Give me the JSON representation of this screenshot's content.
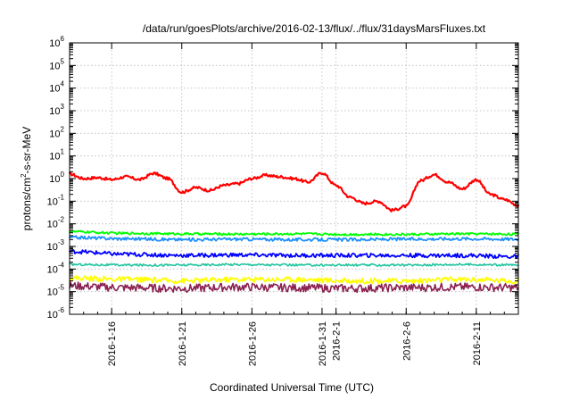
{
  "chart_data": {
    "type": "line",
    "title": "/data/run/goesPlots/archive/2016-02-13/flux/../flux/31daysMarsFluxes.txt",
    "xlabel": "Coordinated Universal Time (UTC)",
    "ylabel": "protons/cm²-s-sr-MeV",
    "ylabel_parts": {
      "base": "protons/cm",
      "sup": "2",
      "rest": "-s-sr-MeV"
    },
    "yscale": "log",
    "ylim": [
      1e-06,
      1000000.0
    ],
    "xlim": [
      "2016-01-13",
      "2016-02-14"
    ],
    "y_ticks": [
      {
        "base": "10",
        "exp": "-6",
        "value": 1e-06
      },
      {
        "base": "10",
        "exp": "-5",
        "value": 1e-05
      },
      {
        "base": "10",
        "exp": "-4",
        "value": 0.0001
      },
      {
        "base": "10",
        "exp": "-3",
        "value": 0.001
      },
      {
        "base": "10",
        "exp": "-2",
        "value": 0.01
      },
      {
        "base": "10",
        "exp": "-1",
        "value": 0.1
      },
      {
        "base": "10",
        "exp": "0",
        "value": 1
      },
      {
        "base": "10",
        "exp": "1",
        "value": 10.0
      },
      {
        "base": "10",
        "exp": "2",
        "value": 100.0
      },
      {
        "base": "10",
        "exp": "3",
        "value": 1000.0
      },
      {
        "base": "10",
        "exp": "4",
        "value": 10000.0
      },
      {
        "base": "10",
        "exp": "5",
        "value": 100000.0
      },
      {
        "base": "10",
        "exp": "6",
        "value": 1000000.0
      }
    ],
    "x_ticks": [
      {
        "date": "2016-01-16",
        "label": "2016-1-16"
      },
      {
        "date": "2016-01-21",
        "label": "2016-1-21"
      },
      {
        "date": "2016-01-26",
        "label": "2016-1-26"
      },
      {
        "date": "2016-01-31",
        "label": "2016-1-31"
      },
      {
        "date": "2016-02-01",
        "label": "2016-2-1"
      },
      {
        "date": "2016-02-06",
        "label": "2016-2-6"
      },
      {
        "date": "2016-02-11",
        "label": "2016-2-11"
      }
    ],
    "grid": true,
    "legend": "none",
    "series": [
      {
        "color": "#ff0000",
        "x": [
          "2016-01-13",
          "2016-01-14",
          "2016-01-15",
          "2016-01-16",
          "2016-01-17",
          "2016-01-18",
          "2016-01-19",
          "2016-01-20",
          "2016-01-21",
          "2016-01-22",
          "2016-01-23",
          "2016-01-24",
          "2016-01-25",
          "2016-01-26",
          "2016-01-27",
          "2016-01-28",
          "2016-01-29",
          "2016-01-30",
          "2016-01-31",
          "2016-02-01",
          "2016-02-02",
          "2016-02-03",
          "2016-02-04",
          "2016-02-05",
          "2016-02-06",
          "2016-02-07",
          "2016-02-08",
          "2016-02-09",
          "2016-02-10",
          "2016-02-11",
          "2016-02-12",
          "2016-02-13",
          "2016-02-14"
        ],
        "values": [
          1.6,
          1.0,
          1.1,
          0.9,
          1.2,
          0.9,
          1.7,
          1.0,
          0.25,
          0.4,
          0.3,
          0.5,
          0.6,
          1.0,
          1.4,
          1.2,
          1.0,
          0.7,
          1.8,
          0.5,
          0.15,
          0.08,
          0.1,
          0.04,
          0.06,
          0.8,
          1.5,
          0.7,
          0.35,
          0.9,
          0.2,
          0.12,
          0.065
        ]
      },
      {
        "color": "#00ff00",
        "x": [
          "2016-01-13",
          "2016-01-17",
          "2016-01-21",
          "2016-01-25",
          "2016-01-29",
          "2016-02-02",
          "2016-02-06",
          "2016-02-10",
          "2016-02-14"
        ],
        "values": [
          0.0045,
          0.0038,
          0.0036,
          0.0035,
          0.0036,
          0.0034,
          0.0034,
          0.0036,
          0.0035
        ]
      },
      {
        "color": "#1e90ff",
        "x": [
          "2016-01-13",
          "2016-01-17",
          "2016-01-21",
          "2016-01-25",
          "2016-01-29",
          "2016-02-02",
          "2016-02-06",
          "2016-02-10",
          "2016-02-14"
        ],
        "values": [
          0.0025,
          0.0022,
          0.002,
          0.0021,
          0.002,
          0.002,
          0.0021,
          0.0022,
          0.0021
        ]
      },
      {
        "color": "#0000ff",
        "x": [
          "2016-01-13",
          "2016-01-17",
          "2016-01-21",
          "2016-01-25",
          "2016-01-29",
          "2016-02-02",
          "2016-02-06",
          "2016-02-10",
          "2016-02-14"
        ],
        "values": [
          0.0006,
          0.00045,
          0.0004,
          0.00042,
          0.0004,
          0.0004,
          0.0004,
          0.0004,
          0.00035
        ]
      },
      {
        "color": "#20c4a0",
        "x": [
          "2016-01-13",
          "2016-01-17",
          "2016-01-21",
          "2016-01-25",
          "2016-01-29",
          "2016-02-02",
          "2016-02-06",
          "2016-02-10",
          "2016-02-14"
        ],
        "values": [
          0.00016,
          0.00015,
          0.00015,
          0.00016,
          0.00015,
          0.00015,
          0.00015,
          0.00016,
          0.00015
        ]
      },
      {
        "color": "#ffff00",
        "x": [
          "2016-01-13",
          "2016-01-17",
          "2016-01-21",
          "2016-01-25",
          "2016-01-29",
          "2016-02-02",
          "2016-02-06",
          "2016-02-10",
          "2016-02-14"
        ],
        "values": [
          4e-05,
          3.5e-05,
          3e-05,
          3.5e-05,
          3.5e-05,
          3e-05,
          3e-05,
          3.5e-05,
          3e-05
        ]
      },
      {
        "color": "#8b2252",
        "x": [
          "2016-01-13",
          "2016-01-17",
          "2016-01-21",
          "2016-01-25",
          "2016-01-29",
          "2016-02-02",
          "2016-02-06",
          "2016-02-10",
          "2016-02-14"
        ],
        "values": [
          1.8e-05,
          1.5e-05,
          1.4e-05,
          1.6e-05,
          1.5e-05,
          1.4e-05,
          1.5e-05,
          1.6e-05,
          1.5e-05
        ]
      }
    ]
  }
}
